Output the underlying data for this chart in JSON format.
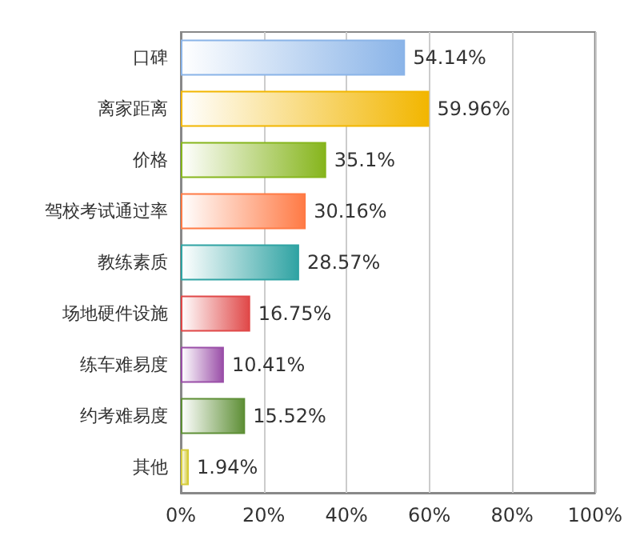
{
  "chart_data": {
    "type": "bar",
    "orientation": "horizontal",
    "categories": [
      "口碑",
      "离家距离",
      "价格",
      "驾校考试通过率",
      "教练素质",
      "场地硬件设施",
      "练车难易度",
      "约考难易度",
      "其他"
    ],
    "values": [
      54.14,
      59.96,
      35.1,
      30.16,
      28.57,
      16.75,
      10.41,
      15.52,
      1.94
    ],
    "colors": [
      "#8ab4e8",
      "#f2b600",
      "#86b51c",
      "#ff7a45",
      "#2fa3a3",
      "#e04848",
      "#9a4fa8",
      "#5e8f36",
      "#d6cc3a"
    ],
    "value_labels": [
      "54.14%",
      "59.96%",
      "35.1%",
      "30.16%",
      "28.57%",
      "16.75%",
      "10.41%",
      "15.52%",
      "1.94%"
    ],
    "xlim": [
      0,
      100
    ],
    "xticks": [
      {
        "value": 0,
        "label": "0%"
      },
      {
        "value": 20,
        "label": "20%"
      },
      {
        "value": 40,
        "label": "40%"
      },
      {
        "value": 60,
        "label": "60%"
      },
      {
        "value": 80,
        "label": "80%"
      },
      {
        "value": 100,
        "label": "100%"
      }
    ],
    "grid": "x"
  }
}
